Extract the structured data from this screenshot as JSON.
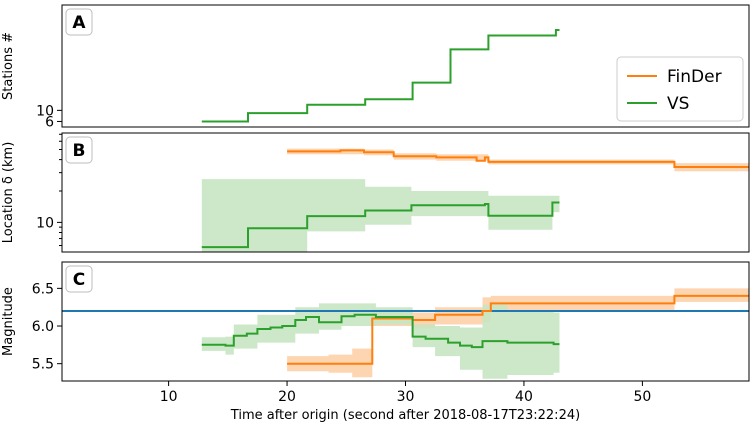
{
  "colors": {
    "finder": "#ff7f0e",
    "vs": "#2ca02c",
    "finder_band": "#fdd0a8",
    "vs_band": "#c7e6c2",
    "reference": "#1f77b4"
  },
  "chart_data": [
    {
      "type": "line",
      "panel_letter": "A",
      "ylabel": "Stations #",
      "xlim": [
        1,
        59
      ],
      "ylim": [
        4,
        48
      ],
      "y_ticks": [
        6,
        10
      ],
      "grid": false,
      "series": [
        {
          "name": "VS",
          "step": true,
          "points": [
            [
              12.8,
              6
            ],
            [
              16.7,
              6
            ],
            [
              16.7,
              9
            ],
            [
              21.7,
              9
            ],
            [
              21.7,
              12
            ],
            [
              26.6,
              12
            ],
            [
              26.6,
              14
            ],
            [
              30.6,
              14
            ],
            [
              30.6,
              20
            ],
            [
              33.8,
              20
            ],
            [
              33.8,
              32
            ],
            [
              37.0,
              32
            ],
            [
              37.0,
              37
            ],
            [
              42.7,
              37
            ],
            [
              42.7,
              39
            ],
            [
              43.0,
              39
            ]
          ]
        }
      ],
      "legend": {
        "position": "right",
        "entries": [
          "FinDer",
          "VS"
        ]
      }
    },
    {
      "type": "line",
      "panel_letter": "B",
      "ylabel": "Location δ (km)",
      "yscale": "log",
      "xlim": [
        1,
        59
      ],
      "ylim": [
        5.2,
        72
      ],
      "y_ticks": [
        10
      ],
      "grid": false,
      "series": [
        {
          "name": "FinDer",
          "step": true,
          "points": [
            [
              20.0,
              48
            ],
            [
              24.5,
              48
            ],
            [
              24.5,
              49
            ],
            [
              26.5,
              49
            ],
            [
              26.5,
              47
            ],
            [
              29.0,
              47
            ],
            [
              29.0,
              43
            ],
            [
              32.6,
              43
            ],
            [
              32.6,
              42
            ],
            [
              36.0,
              42
            ],
            [
              36.0,
              39
            ],
            [
              36.7,
              39
            ],
            [
              36.7,
              42
            ],
            [
              37.0,
              42
            ],
            [
              37.0,
              38
            ],
            [
              52.7,
              38
            ],
            [
              52.7,
              34
            ],
            [
              59.0,
              34
            ]
          ],
          "band": [
            [
              20.0,
              45,
              51
            ],
            [
              26.5,
              44,
              50
            ],
            [
              29.0,
              40,
              46
            ],
            [
              32.6,
              39,
              45
            ],
            [
              37.0,
              36,
              40
            ],
            [
              52.7,
              31,
              37
            ],
            [
              59.0,
              31,
              37
            ]
          ]
        },
        {
          "name": "VS",
          "step": true,
          "points": [
            [
              12.8,
              5.8
            ],
            [
              16.7,
              5.8
            ],
            [
              16.7,
              8.8
            ],
            [
              21.7,
              8.8
            ],
            [
              21.7,
              11.5
            ],
            [
              26.6,
              11.5
            ],
            [
              26.6,
              13.0
            ],
            [
              30.5,
              13.0
            ],
            [
              30.5,
              14.6
            ],
            [
              36.7,
              14.6
            ],
            [
              36.7,
              15.0
            ],
            [
              37.0,
              15.0
            ],
            [
              37.0,
              11.6
            ],
            [
              42.4,
              11.6
            ],
            [
              42.4,
              15.5
            ],
            [
              43.0,
              15.5
            ]
          ],
          "band": [
            [
              12.8,
              5.2,
              26
            ],
            [
              21.7,
              8.2,
              26
            ],
            [
              26.6,
              9.5,
              22
            ],
            [
              30.5,
              11.5,
              20
            ],
            [
              37.0,
              8.5,
              18
            ],
            [
              42.4,
              12.5,
              18
            ],
            [
              43.0,
              12.5,
              18
            ]
          ]
        }
      ]
    },
    {
      "type": "line",
      "panel_letter": "C",
      "ylabel": "Magnitude",
      "xlabel": "Time after origin (second after 2018-08-17T23:22:24)",
      "xlim": [
        1,
        59
      ],
      "ylim": [
        5.27,
        6.85
      ],
      "x_ticks": [
        10,
        20,
        30,
        40,
        50
      ],
      "y_ticks": [
        5.5,
        6.0,
        6.5
      ],
      "grid": false,
      "reference_line": {
        "y": 6.2,
        "x": [
          1,
          59
        ]
      },
      "series": [
        {
          "name": "FinDer",
          "step": true,
          "points": [
            [
              20.0,
              5.5
            ],
            [
              27.2,
              5.5
            ],
            [
              27.2,
              6.1
            ],
            [
              30.6,
              6.1
            ],
            [
              30.6,
              6.08
            ],
            [
              32.5,
              6.08
            ],
            [
              32.5,
              6.15
            ],
            [
              36.5,
              6.15
            ],
            [
              36.5,
              6.2
            ],
            [
              37.2,
              6.2
            ],
            [
              37.2,
              6.3
            ],
            [
              52.7,
              6.3
            ],
            [
              52.7,
              6.4
            ],
            [
              59.0,
              6.4
            ]
          ],
          "band": [
            [
              20.0,
              5.4,
              5.6
            ],
            [
              23.5,
              5.38,
              5.62
            ],
            [
              25.5,
              5.32,
              5.7
            ],
            [
              27.2,
              6.0,
              6.22
            ],
            [
              30.6,
              5.97,
              6.18
            ],
            [
              32.5,
              6.02,
              6.25
            ],
            [
              36.5,
              6.05,
              6.38
            ],
            [
              37.2,
              6.2,
              6.4
            ],
            [
              52.7,
              6.32,
              6.5
            ],
            [
              59.0,
              6.32,
              6.5
            ]
          ]
        },
        {
          "name": "VS",
          "step": true,
          "points": [
            [
              12.8,
              5.75
            ],
            [
              14.8,
              5.75
            ],
            [
              14.8,
              5.74
            ],
            [
              15.5,
              5.74
            ],
            [
              15.5,
              5.87
            ],
            [
              16.6,
              5.87
            ],
            [
              16.6,
              5.9
            ],
            [
              17.5,
              5.9
            ],
            [
              17.5,
              5.96
            ],
            [
              18.6,
              5.96
            ],
            [
              18.6,
              5.98
            ],
            [
              19.6,
              5.98
            ],
            [
              19.6,
              6.0
            ],
            [
              20.7,
              6.0
            ],
            [
              20.7,
              6.08
            ],
            [
              21.6,
              6.08
            ],
            [
              21.6,
              6.12
            ],
            [
              22.7,
              6.12
            ],
            [
              22.7,
              6.05
            ],
            [
              24.6,
              6.05
            ],
            [
              24.6,
              6.13
            ],
            [
              25.7,
              6.13
            ],
            [
              25.7,
              6.15
            ],
            [
              27.5,
              6.15
            ],
            [
              27.5,
              6.12
            ],
            [
              30.6,
              6.12
            ],
            [
              30.6,
              5.86
            ],
            [
              31.7,
              5.86
            ],
            [
              31.7,
              5.83
            ],
            [
              33.6,
              5.83
            ],
            [
              33.6,
              5.78
            ],
            [
              34.6,
              5.78
            ],
            [
              34.6,
              5.74
            ],
            [
              35.6,
              5.74
            ],
            [
              35.6,
              5.72
            ],
            [
              36.5,
              5.72
            ],
            [
              36.5,
              5.8
            ],
            [
              38.6,
              5.8
            ],
            [
              38.6,
              5.78
            ],
            [
              42.5,
              5.78
            ],
            [
              42.5,
              5.76
            ],
            [
              43.0,
              5.76
            ]
          ],
          "band": [
            [
              12.8,
              5.67,
              5.85
            ],
            [
              14.8,
              5.62,
              5.86
            ],
            [
              15.5,
              5.7,
              6.02
            ],
            [
              17.5,
              5.78,
              6.15
            ],
            [
              20.7,
              5.9,
              6.25
            ],
            [
              22.7,
              5.95,
              6.3
            ],
            [
              24.6,
              6.0,
              6.3
            ],
            [
              27.5,
              6.02,
              6.25
            ],
            [
              30.6,
              5.72,
              6.02
            ],
            [
              32.5,
              5.6,
              6.0
            ],
            [
              34.6,
              5.42,
              5.98
            ],
            [
              36.5,
              5.3,
              6.28
            ],
            [
              38.6,
              5.35,
              6.2
            ],
            [
              42.5,
              5.38,
              6.18
            ],
            [
              43.0,
              5.38,
              6.18
            ]
          ]
        }
      ]
    }
  ]
}
